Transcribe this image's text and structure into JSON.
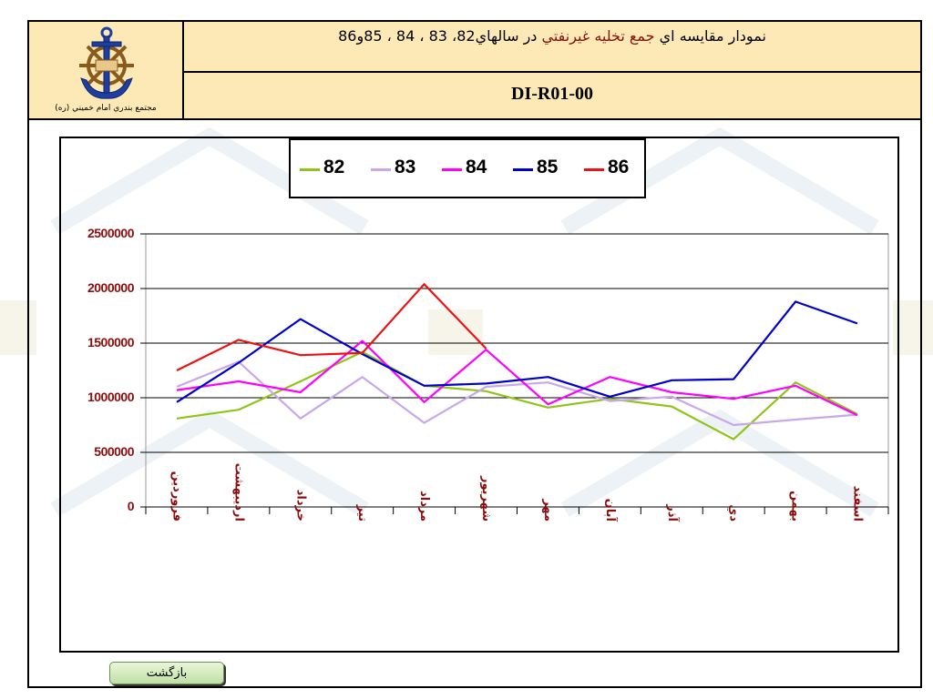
{
  "header": {
    "org_name": "مجتمع بندري امام خميني (ره)",
    "title_part1": "نمودار مقايسه اي ",
    "title_part2": "جمع تخليه غيرنفتي",
    "title_part3": " در سالهاي82، 83 ، 84 ، 85و86",
    "code": "DI-R01-00"
  },
  "back_button": {
    "label": "بازگشت"
  },
  "chart_data": {
    "type": "line",
    "title": "",
    "xlabel": "",
    "ylabel": "",
    "ylim": [
      0,
      2500000
    ],
    "yticks": [
      0,
      500000,
      1000000,
      1500000,
      2000000,
      2500000
    ],
    "ytick_labels": [
      "0",
      "500000",
      "1000000",
      "1500000",
      "2000000",
      "2500000"
    ],
    "grid": true,
    "legend_position": "top-center",
    "categories": [
      "فروردين",
      "ارديبهشت",
      "خرداد",
      "تير",
      "مرداد",
      "شهريور",
      "مهر",
      "آبان",
      "آذر",
      "دي",
      "بهمن",
      "اسفند"
    ],
    "series": [
      {
        "name": "82",
        "color": "#90c418",
        "values": [
          810000,
          890000,
          1150000,
          1420000,
          1110000,
          1060000,
          910000,
          990000,
          920000,
          620000,
          1140000,
          850000
        ]
      },
      {
        "name": "83",
        "color": "#c8a8e8",
        "values": [
          1100000,
          1330000,
          810000,
          1190000,
          770000,
          1100000,
          1140000,
          970000,
          1010000,
          750000,
          800000,
          845000
        ]
      },
      {
        "name": "84",
        "color": "#ff00ff",
        "values": [
          1070000,
          1150000,
          1050000,
          1520000,
          960000,
          1440000,
          940000,
          1190000,
          1050000,
          990000,
          1110000,
          840000
        ]
      },
      {
        "name": "85",
        "color": "#0000cc",
        "values": [
          960000,
          1320000,
          1720000,
          1400000,
          1110000,
          1130000,
          1190000,
          1010000,
          1160000,
          1170000,
          1880000,
          1680000
        ]
      },
      {
        "name": "86",
        "color": "#ee1111",
        "values": [
          1250000,
          1530000,
          1390000,
          1410000,
          2040000,
          1450000,
          null,
          null,
          null,
          null,
          null,
          null
        ]
      }
    ]
  }
}
